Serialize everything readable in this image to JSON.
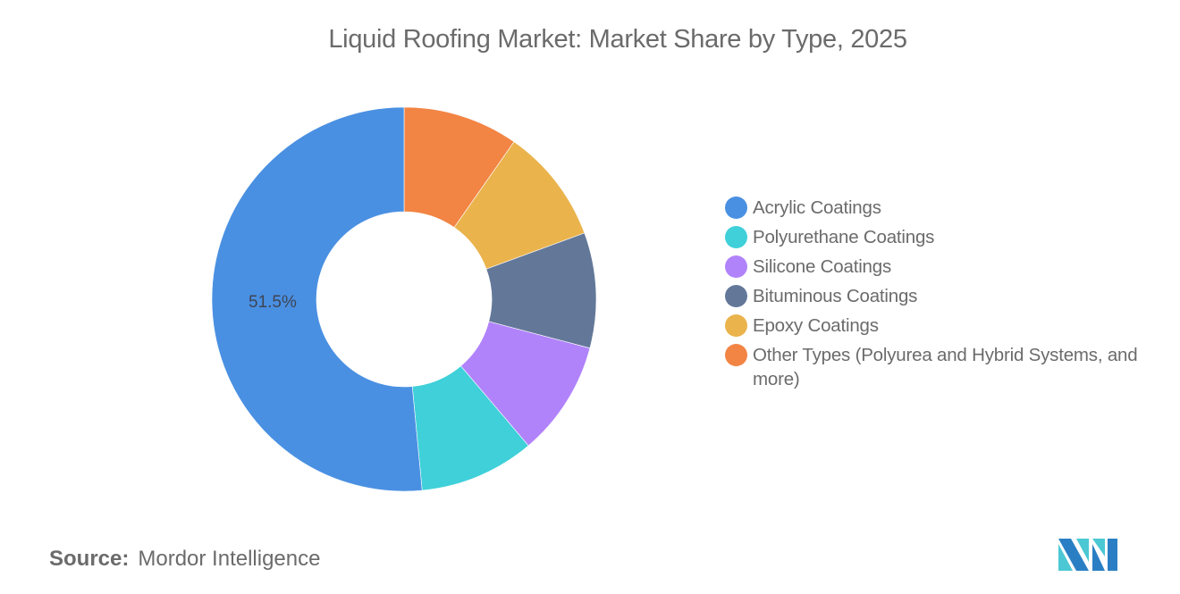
{
  "title": "Liquid Roofing Market: Market Share by Type, 2025",
  "source": {
    "label": "Source:",
    "value": "Mordor Intelligence"
  },
  "logo": {
    "name": "mordor-intelligence-logo",
    "colors": [
      "#2a7fc4",
      "#4bc8d4"
    ]
  },
  "legend": {
    "items": [
      {
        "label": "Acrylic Coatings",
        "color": "#4a90e2"
      },
      {
        "label": "Polyurethane Coatings",
        "color": "#3fd0d9"
      },
      {
        "label": "Silicone Coatings",
        "color": "#b183fb"
      },
      {
        "label": "Bituminous Coatings",
        "color": "#637899"
      },
      {
        "label": "Epoxy Coatings",
        "color": "#eab34c"
      },
      {
        "label": "Other Types (Polyurea and Hybrid Systems, and more)",
        "color": "#f28444"
      }
    ]
  },
  "labels": {
    "acrylic": "51.5%"
  },
  "chart_data": {
    "type": "pie",
    "subtype": "donut",
    "title": "Liquid Roofing Market: Market Share by Type, 2025",
    "categories": [
      "Acrylic Coatings",
      "Polyurethane Coatings",
      "Silicone Coatings",
      "Bituminous Coatings",
      "Epoxy Coatings",
      "Other Types (Polyurea and Hybrid Systems, and more)"
    ],
    "values": [
      51.5,
      9.7,
      9.7,
      9.7,
      9.7,
      9.7
    ],
    "unit": "%",
    "colors": [
      "#4a90e2",
      "#3fd0d9",
      "#b183fb",
      "#637899",
      "#eab34c",
      "#f28444"
    ],
    "data_labels": [
      {
        "category": "Acrylic Coatings",
        "text": "51.5%"
      }
    ],
    "legend_position": "right",
    "start_angle_deg": 0,
    "direction": "counterclockwise-from-top for series order (Other Types first clockwise from 12 o'clock)",
    "source": "Mordor Intelligence"
  }
}
